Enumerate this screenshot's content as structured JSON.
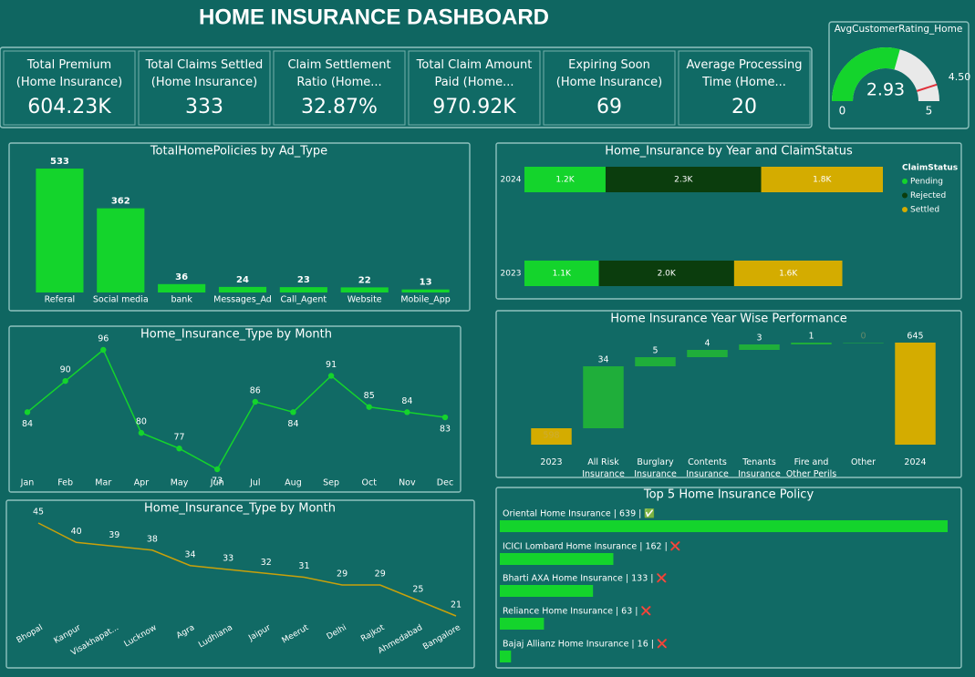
{
  "title": "HOME INSURANCE DASHBOARD",
  "kpis": [
    {
      "label": "Total Premium (Home Insurance)",
      "value": "604.23K"
    },
    {
      "label": "Total Claims Settled (Home Insurance)",
      "value": "333"
    },
    {
      "label": "Claim Settlement Ratio (Home...",
      "value": "32.87%"
    },
    {
      "label": "Total Claim Amount Paid (Home...",
      "value": "970.92K"
    },
    {
      "label": "Expiring Soon (Home Insurance)",
      "value": "69"
    },
    {
      "label": "Average Processing Time (Home...",
      "value": "20"
    }
  ],
  "chart_data": [
    {
      "type": "gauge",
      "title": "AvgCustomerRating_Home",
      "value": 2.93,
      "range": [
        0,
        5
      ],
      "ticks": [
        0,
        5
      ],
      "target": {
        "value": 4.5,
        "label": "4.50"
      },
      "color": "#14d42c",
      "track_color": "#e9e9e9",
      "target_color": "#e0303a"
    },
    {
      "type": "bar",
      "title": "TotalHomePolicies by Ad_Type",
      "categories": [
        "Referal",
        "Social media",
        "bank",
        "Messages_Ad",
        "Call_Agent",
        "Website",
        "Mobile_App"
      ],
      "values": [
        533,
        362,
        36,
        24,
        23,
        22,
        13
      ],
      "color": "#14d42c"
    },
    {
      "type": "stacked_bar",
      "orientation": "horizontal",
      "title": "Home_Insurance by Year and ClaimStatus",
      "categories": [
        "2024",
        "2023"
      ],
      "legend_title": "ClaimStatus",
      "xlim": [
        0,
        5300
      ],
      "series": [
        {
          "name": "Pending",
          "color": "#14d42c",
          "values": [
            1200,
            1100
          ],
          "value_labels": [
            "1.2K",
            "1.1K"
          ]
        },
        {
          "name": "Rejected",
          "color": "#0b3d0d",
          "values": [
            2300,
            2000
          ],
          "value_labels": [
            "2.3K",
            "2.0K"
          ]
        },
        {
          "name": "Settled",
          "color": "#d4ac00",
          "values": [
            1800,
            1600
          ],
          "value_labels": [
            "1.8K",
            "1.6K"
          ]
        }
      ]
    },
    {
      "type": "line",
      "title": "Home_Insurance_Type by Month",
      "markers": true,
      "categories": [
        "Jan",
        "Feb",
        "Mar",
        "Apr",
        "May",
        "Jun",
        "Jul",
        "Aug",
        "Sep",
        "Oct",
        "Nov",
        "Dec"
      ],
      "values": [
        84,
        90,
        96,
        80,
        77,
        73,
        86,
        84,
        91,
        85,
        84,
        83
      ],
      "color": "#14d42c"
    },
    {
      "type": "waterfall",
      "title": "Home Insurance Year Wise Performance",
      "categories": [
        "2023",
        "All Risk Insurance",
        "Burglary Insurance",
        "Contents Insurance",
        "Tenants Insurance",
        "Fire and Other Perils",
        "Other",
        "2024"
      ],
      "values": [
        598,
        34,
        5,
        4,
        3,
        1,
        0,
        645
      ],
      "ylim": [
        589,
        646
      ],
      "colors": [
        "#d4ac00",
        "#1fae3a",
        "#1fae3a",
        "#1fae3a",
        "#1fae3a",
        "#1fae3a",
        "#1fae3a",
        "#d4ac00"
      ]
    },
    {
      "type": "line",
      "title": "Home_Insurance_Type by Month",
      "markers": false,
      "rotate_labels": true,
      "categories": [
        "Bhopal",
        "Kanpur",
        "Visakhapat...",
        "Lucknow",
        "Agra",
        "Ludhiana",
        "Jaipur",
        "Meerut",
        "Delhi",
        "Rajkot",
        "Ahmedabad",
        "Bangalore"
      ],
      "values": [
        45,
        40,
        39,
        38,
        34,
        33,
        32,
        31,
        29,
        29,
        25,
        21
      ],
      "color": "#c9a10a"
    },
    {
      "type": "hbar",
      "title": "Top 5 Home Insurance Policy",
      "categories": [
        "Oriental Home Insurance | 639 | ✅",
        "ICICI Lombard Home Insurance | 162 | ❌",
        "Bharti AXA Home Insurance | 133 | ❌",
        "Reliance Home Insurance | 63 | ❌",
        "Bajaj Allianz Home Insurance | 16 | ❌"
      ],
      "values": [
        639,
        162,
        133,
        63,
        16
      ],
      "color": "#14d42c"
    }
  ]
}
